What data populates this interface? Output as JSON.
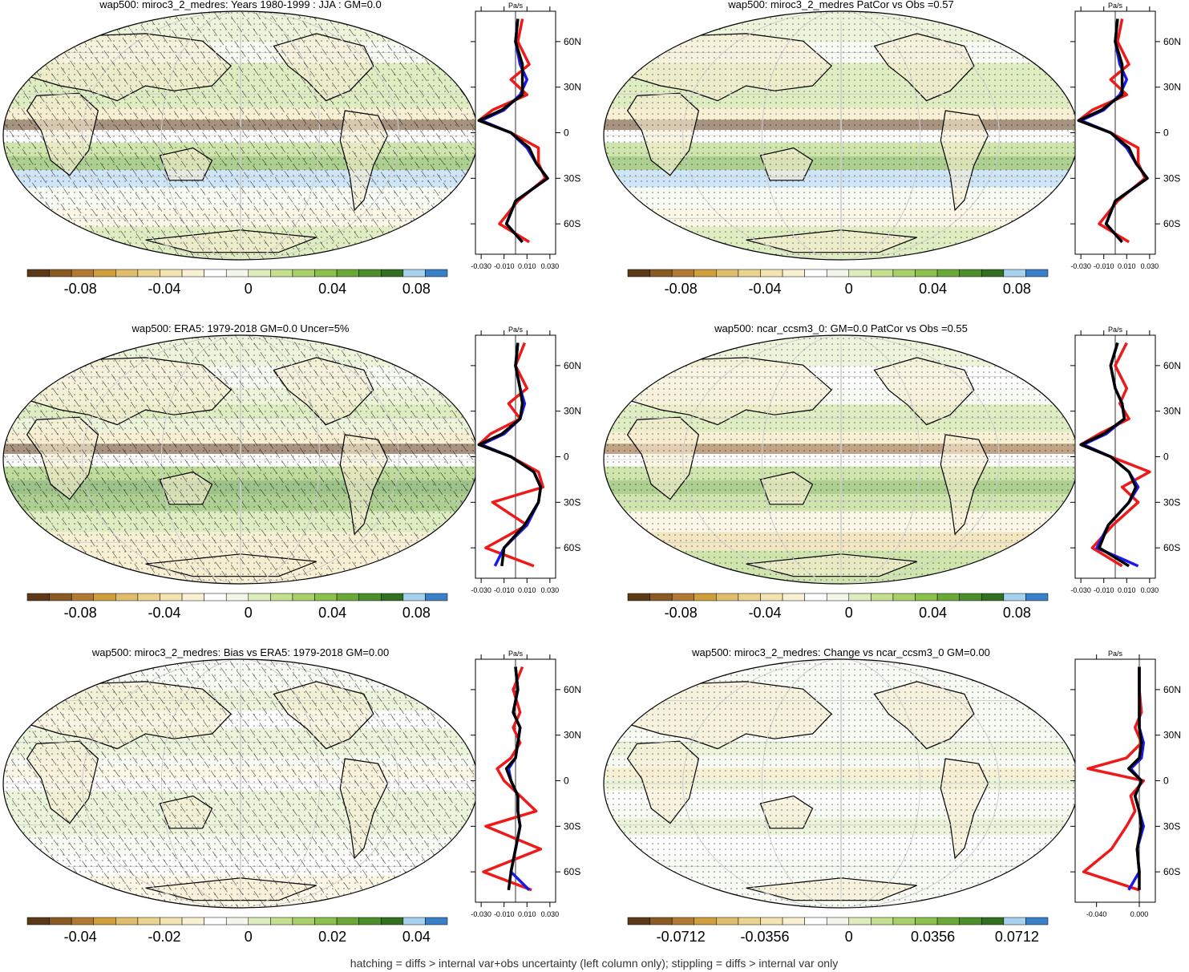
{
  "footer": "hatching = diffs > internal var+obs uncertainty (left column only); stippling = diffs > internal var only",
  "colors": {
    "palette": [
      "#5c3a17",
      "#8a5a25",
      "#b07a35",
      "#cf9f3e",
      "#dfbd6c",
      "#ead38f",
      "#f3e3b0",
      "#f9f0d4",
      "#ffffff",
      "#f2f7ea",
      "#dcecbd",
      "#c4df8f",
      "#a9d06b",
      "#8cbf4b",
      "#6aa937",
      "#4c8f2a",
      "#336f21",
      "#a6d2f0",
      "#3a80c8"
    ],
    "ocean_bg": "#ffffff",
    "land_tint": "#f6edd0",
    "model": "#1a1aee",
    "obs": "#ee1a1a",
    "mmm": "#000000"
  },
  "panels": [
    {
      "title": "wap500: miroc3_2_medres: Years 1980-1999 : JJA : GM=0.0",
      "hatched": true,
      "colorbar_ticks": [
        "-0.08",
        "-0.04",
        "0",
        "0.04",
        "0.08"
      ],
      "profile": {
        "unit": "Pa/s",
        "lat_ticks": [
          "60N",
          "30N",
          "0",
          "30S",
          "60S"
        ],
        "x_ticks": [
          "-0.030",
          "-0.010",
          "0.010",
          "0.030"
        ]
      }
    },
    {
      "title": "wap500: miroc3_2_medres PatCor vs Obs =0.57",
      "hatched": false,
      "colorbar_ticks": [
        "-0.08",
        "-0.04",
        "0",
        "0.04",
        "0.08"
      ],
      "profile": {
        "unit": "Pa/s",
        "lat_ticks": [
          "60N",
          "30N",
          "0",
          "30S",
          "60S"
        ],
        "x_ticks": [
          "-0.030",
          "-0.010",
          "0.010",
          "0.030"
        ]
      }
    },
    {
      "title": "wap500: ERA5: 1979-2018 GM=0.0 Uncer=5%",
      "hatched": true,
      "colorbar_ticks": [
        "-0.08",
        "-0.04",
        "0",
        "0.04",
        "0.08"
      ],
      "profile": {
        "unit": "Pa/s",
        "lat_ticks": [
          "60N",
          "30N",
          "0",
          "30S",
          "60S"
        ],
        "x_ticks": [
          "-0.030",
          "-0.010",
          "0.010",
          "0.030"
        ]
      }
    },
    {
      "title": "wap500: ncar_ccsm3_0: GM=0.0 PatCor vs Obs =0.55",
      "hatched": false,
      "colorbar_ticks": [
        "-0.08",
        "-0.04",
        "0",
        "0.04",
        "0.08"
      ],
      "profile": {
        "unit": "Pa/s",
        "lat_ticks": [
          "60N",
          "30N",
          "0",
          "30S",
          "60S"
        ],
        "x_ticks": [
          "-0.030",
          "-0.010",
          "0.010",
          "0.030"
        ]
      }
    },
    {
      "title": "wap500: miroc3_2_medres: Bias vs ERA5: 1979-2018 GM=0.00",
      "hatched": true,
      "colorbar_ticks": [
        "-0.04",
        "-0.02",
        "0",
        "0.02",
        "0.04"
      ],
      "profile": {
        "unit": "Pa/s",
        "lat_ticks": [
          "60N",
          "30N",
          "0",
          "30S",
          "60S"
        ],
        "x_ticks": [
          "-0.030",
          "-0.010",
          "0.010",
          "0.030"
        ]
      }
    },
    {
      "title": "wap500: miroc3_2_medres: Change vs ncar_ccsm3_0 GM=0.00",
      "hatched": false,
      "colorbar_ticks": [
        "-0.0712",
        "-0.0356",
        "0",
        "0.0356",
        "0.0712"
      ],
      "profile": {
        "unit": "Pa/s",
        "lat_ticks": [
          "60N",
          "30N",
          "0",
          "30S",
          "60S"
        ],
        "x_ticks": [
          "-0.040",
          "0.000"
        ]
      }
    }
  ],
  "chart_data": [
    {
      "type": "heatmap",
      "title": "wap500: miroc3_2_medres: Years 1980-1999 : JJA : GM=0.0",
      "xlabel": "",
      "ylabel": "",
      "colorbar": {
        "levels": [
          -0.1,
          -0.09,
          -0.08,
          -0.07,
          -0.06,
          -0.05,
          -0.04,
          -0.03,
          -0.02,
          -0.01,
          0,
          0.01,
          0.02,
          0.03,
          0.04,
          0.05,
          0.06,
          0.07,
          0.08,
          0.09,
          0.1
        ],
        "tick_labels": [
          "-0.08",
          "-0.04",
          "0",
          "0.04",
          "0.08"
        ]
      },
      "zonal_profile": {
        "unit": "Pa/s",
        "xlim": [
          -0.035,
          0.035
        ],
        "ylim": [
          -80,
          80
        ],
        "lat": [
          75,
          60,
          45,
          35,
          25,
          15,
          8,
          0,
          -10,
          -20,
          -30,
          -45,
          -60,
          -72
        ],
        "series": [
          {
            "name": "model",
            "values": [
              0.002,
              0.0,
              0.004,
              0.01,
              0.004,
              -0.01,
              -0.03,
              -0.004,
              0.01,
              0.018,
              0.028,
              0.0,
              -0.008,
              0.006
            ]
          },
          {
            "name": "obs",
            "values": [
              0.006,
              0.002,
              0.012,
              -0.004,
              0.01,
              -0.02,
              -0.032,
              -0.004,
              0.02,
              0.02,
              0.026,
              0.002,
              -0.014,
              0.012
            ]
          },
          {
            "name": "mmm",
            "values": [
              0.002,
              0.0,
              0.006,
              0.006,
              0.006,
              -0.012,
              -0.032,
              -0.004,
              0.012,
              0.018,
              0.028,
              0.0,
              -0.008,
              0.006
            ]
          }
        ]
      }
    },
    {
      "type": "heatmap",
      "title": "wap500: miroc3_2_medres PatCor vs Obs =0.57",
      "xlabel": "",
      "ylabel": "",
      "colorbar": {
        "levels": [
          -0.1,
          -0.09,
          -0.08,
          -0.07,
          -0.06,
          -0.05,
          -0.04,
          -0.03,
          -0.02,
          -0.01,
          0,
          0.01,
          0.02,
          0.03,
          0.04,
          0.05,
          0.06,
          0.07,
          0.08,
          0.09,
          0.1
        ],
        "tick_labels": [
          "-0.08",
          "-0.04",
          "0",
          "0.04",
          "0.08"
        ]
      },
      "zonal_profile": {
        "unit": "Pa/s",
        "xlim": [
          -0.035,
          0.035
        ],
        "ylim": [
          -80,
          80
        ],
        "lat": [
          75,
          60,
          45,
          35,
          25,
          15,
          8,
          0,
          -10,
          -20,
          -30,
          -45,
          -60,
          -72
        ],
        "series": [
          {
            "name": "model",
            "values": [
              0.002,
              0.0,
              0.004,
              0.01,
              0.004,
              -0.01,
              -0.03,
              -0.004,
              0.01,
              0.018,
              0.028,
              0.0,
              -0.008,
              0.006
            ]
          },
          {
            "name": "obs",
            "values": [
              0.006,
              0.002,
              0.012,
              -0.004,
              0.01,
              -0.02,
              -0.032,
              -0.004,
              0.02,
              0.02,
              0.026,
              0.002,
              -0.014,
              0.012
            ]
          },
          {
            "name": "mmm",
            "values": [
              0.002,
              0.0,
              0.006,
              0.006,
              0.006,
              -0.012,
              -0.032,
              -0.004,
              0.012,
              0.018,
              0.028,
              0.0,
              -0.008,
              0.006
            ]
          }
        ]
      }
    },
    {
      "type": "heatmap",
      "title": "wap500: ERA5: 1979-2018 GM=0.0 Uncer=5%",
      "xlabel": "",
      "ylabel": "",
      "colorbar": {
        "levels": [
          -0.1,
          -0.09,
          -0.08,
          -0.07,
          -0.06,
          -0.05,
          -0.04,
          -0.03,
          -0.02,
          -0.01,
          0,
          0.01,
          0.02,
          0.03,
          0.04,
          0.05,
          0.06,
          0.07,
          0.08,
          0.09,
          0.1
        ],
        "tick_labels": [
          "-0.08",
          "-0.04",
          "0",
          "0.04",
          "0.08"
        ]
      },
      "zonal_profile": {
        "unit": "Pa/s",
        "xlim": [
          -0.035,
          0.035
        ],
        "ylim": [
          -80,
          80
        ],
        "lat": [
          75,
          60,
          45,
          35,
          25,
          15,
          8,
          0,
          -10,
          -20,
          -30,
          -45,
          -60,
          -72
        ],
        "series": [
          {
            "name": "model",
            "values": [
              0.002,
              0.0,
              0.004,
              0.008,
              0.004,
              -0.01,
              -0.03,
              -0.004,
              0.016,
              0.022,
              0.02,
              0.01,
              -0.01,
              -0.018
            ]
          },
          {
            "name": "obs",
            "values": [
              0.008,
              0.0,
              0.01,
              -0.006,
              0.004,
              -0.022,
              -0.032,
              -0.004,
              0.02,
              0.024,
              -0.02,
              0.01,
              -0.026,
              0.016
            ]
          },
          {
            "name": "mmm",
            "values": [
              0.002,
              0.0,
              0.004,
              0.006,
              0.004,
              -0.012,
              -0.032,
              -0.004,
              0.016,
              0.022,
              0.02,
              0.008,
              -0.01,
              -0.012
            ]
          }
        ]
      }
    },
    {
      "type": "heatmap",
      "title": "wap500: ncar_ccsm3_0: GM=0.0 PatCor vs Obs =0.55",
      "xlabel": "",
      "ylabel": "",
      "colorbar": {
        "levels": [
          -0.1,
          -0.09,
          -0.08,
          -0.07,
          -0.06,
          -0.05,
          -0.04,
          -0.03,
          -0.02,
          -0.01,
          0,
          0.01,
          0.02,
          0.03,
          0.04,
          0.05,
          0.06,
          0.07,
          0.08,
          0.09,
          0.1
        ],
        "tick_labels": [
          "-0.08",
          "-0.04",
          "0",
          "0.04",
          "0.08"
        ]
      },
      "zonal_profile": {
        "unit": "Pa/s",
        "xlim": [
          -0.035,
          0.035
        ],
        "ylim": [
          -80,
          80
        ],
        "lat": [
          75,
          60,
          45,
          35,
          25,
          15,
          8,
          0,
          -10,
          -20,
          -30,
          -45,
          -60,
          -72
        ],
        "series": [
          {
            "name": "model",
            "values": [
              0.002,
              -0.004,
              0.0,
              0.006,
              0.008,
              -0.008,
              -0.028,
              -0.004,
              0.012,
              0.02,
              0.012,
              -0.006,
              -0.016,
              0.02
            ]
          },
          {
            "name": "obs",
            "values": [
              0.01,
              0.0,
              0.01,
              0.004,
              0.012,
              -0.014,
              -0.03,
              -0.004,
              0.03,
              0.006,
              0.02,
              -0.002,
              -0.02,
              0.006
            ]
          },
          {
            "name": "mmm",
            "values": [
              0.002,
              -0.004,
              0.0,
              0.006,
              0.008,
              -0.01,
              -0.03,
              -0.004,
              0.012,
              0.018,
              0.012,
              -0.006,
              -0.014,
              0.012
            ]
          }
        ]
      }
    },
    {
      "type": "heatmap",
      "title": "wap500: miroc3_2_medres: Bias vs ERA5: 1979-2018 GM=0.00",
      "xlabel": "",
      "ylabel": "",
      "colorbar": {
        "levels": [
          -0.05,
          -0.045,
          -0.04,
          -0.035,
          -0.03,
          -0.025,
          -0.02,
          -0.015,
          -0.01,
          -0.005,
          0,
          0.005,
          0.01,
          0.015,
          0.02,
          0.025,
          0.03,
          0.035,
          0.04,
          0.045,
          0.05
        ],
        "tick_labels": [
          "-0.04",
          "-0.02",
          "0",
          "0.02",
          "0.04"
        ]
      },
      "zonal_profile": {
        "unit": "Pa/s",
        "xlim": [
          -0.035,
          0.035
        ],
        "ylim": [
          -80,
          80
        ],
        "lat": [
          75,
          60,
          45,
          35,
          25,
          15,
          8,
          0,
          -10,
          -20,
          -30,
          -45,
          -60,
          -72
        ],
        "series": [
          {
            "name": "model",
            "values": [
              0.0,
              0.002,
              -0.002,
              0.004,
              0.002,
              0.0,
              -0.006,
              -0.004,
              0.002,
              0.002,
              0.004,
              0.0,
              -0.004,
              0.012
            ]
          },
          {
            "name": "obs",
            "values": [
              0.006,
              -0.002,
              0.004,
              -0.002,
              0.004,
              -0.004,
              -0.016,
              -0.01,
              0.004,
              0.018,
              -0.026,
              0.022,
              -0.028,
              0.014
            ]
          },
          {
            "name": "mmm",
            "values": [
              0.0,
              0.002,
              -0.002,
              0.004,
              0.002,
              0.0,
              -0.008,
              -0.004,
              0.002,
              0.002,
              0.004,
              0.0,
              -0.004,
              -0.006
            ]
          }
        ]
      }
    },
    {
      "type": "heatmap",
      "title": "wap500: miroc3_2_medres: Change vs ncar_ccsm3_0 GM=0.00",
      "xlabel": "",
      "ylabel": "",
      "colorbar": {
        "levels": [
          -0.089,
          -0.0801,
          -0.0712,
          -0.0623,
          -0.0534,
          -0.0445,
          -0.0356,
          -0.0267,
          -0.0178,
          -0.0089,
          0,
          0.0089,
          0.0178,
          0.0267,
          0.0356,
          0.0445,
          0.0534,
          0.0623,
          0.0712,
          0.0801,
          0.089
        ],
        "tick_labels": [
          "-0.0712",
          "-0.0356",
          "0",
          "0.0356",
          "0.0712"
        ]
      },
      "zonal_profile": {
        "unit": "Pa/s",
        "xlim": [
          -0.06,
          0.015
        ],
        "ylim": [
          -80,
          80
        ],
        "lat": [
          75,
          60,
          45,
          35,
          25,
          15,
          8,
          0,
          -10,
          -20,
          -30,
          -45,
          -60,
          -72
        ],
        "series": [
          {
            "name": "model",
            "values": [
              0.0,
              0.0,
              0.0,
              0.0,
              0.004,
              0.002,
              -0.008,
              0.002,
              -0.004,
              0.0,
              0.004,
              -0.002,
              0.0,
              -0.01
            ]
          },
          {
            "name": "obs",
            "values": [
              0.0,
              0.0,
              0.002,
              -0.004,
              0.002,
              -0.012,
              -0.048,
              0.004,
              -0.008,
              -0.004,
              -0.012,
              -0.026,
              -0.052,
              0.0
            ]
          },
          {
            "name": "mmm",
            "values": [
              0.0,
              0.0,
              0.0,
              0.0,
              0.002,
              0.0,
              -0.01,
              0.002,
              -0.004,
              0.0,
              0.002,
              -0.002,
              0.0,
              0.0
            ]
          }
        ]
      }
    }
  ]
}
